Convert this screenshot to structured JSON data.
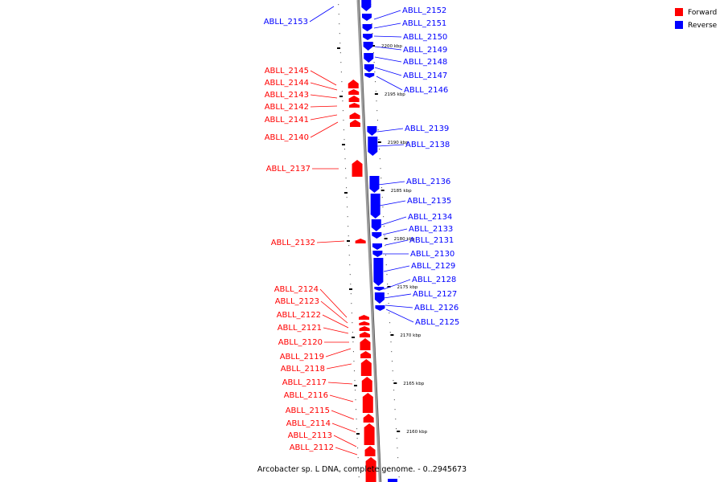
{
  "caption": "Arcobacter sp. L DNA, complete genome. - 0..2945673",
  "legend": {
    "forward_label": "Forward",
    "reverse_label": "Reverse",
    "forward_color": "#ff0000",
    "reverse_color": "#0000ff"
  },
  "ticks": [
    "2200 kbp",
    "2195 kbp",
    "2190 kbp",
    "2185 kbp",
    "2180 kbp",
    "2175 kbp",
    "2170 kbp",
    "2165 kbp",
    "2160 kbp"
  ],
  "reverse_genes": [
    "ABLL_2153",
    "ABLL_2152",
    "ABLL_2151",
    "ABLL_2150",
    "ABLL_2149",
    "ABLL_2148",
    "ABLL_2147",
    "ABLL_2146",
    "ABLL_2139",
    "ABLL_2138",
    "ABLL_2136",
    "ABLL_2135",
    "ABLL_2134",
    "ABLL_2133",
    "ABLL_2131",
    "ABLL_2130",
    "ABLL_2129",
    "ABLL_2128",
    "ABLL_2127",
    "ABLL_2126",
    "ABLL_2125"
  ],
  "forward_genes": [
    "ABLL_2145",
    "ABLL_2144",
    "ABLL_2143",
    "ABLL_2142",
    "ABLL_2141",
    "ABLL_2140",
    "ABLL_2137",
    "ABLL_2132",
    "ABLL_2124",
    "ABLL_2123",
    "ABLL_2122",
    "ABLL_2121",
    "ABLL_2120",
    "ABLL_2119",
    "ABLL_2118",
    "ABLL_2117",
    "ABLL_2116",
    "ABLL_2115",
    "ABLL_2114",
    "ABLL_2113",
    "ABLL_2112"
  ]
}
